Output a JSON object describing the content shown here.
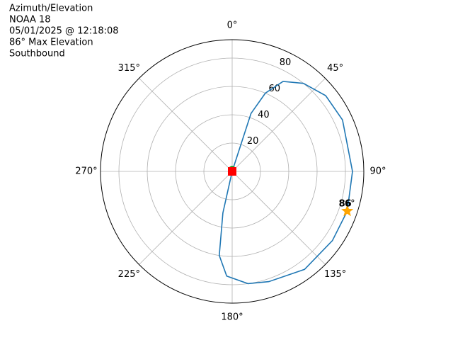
{
  "chart_data": {
    "type": "polar",
    "title_lines": [
      "Azimuth/Elevation",
      "NOAA 18",
      "05/01/2025 @ 12:18:08",
      "86° Max Elevation",
      "Southbound"
    ],
    "series": [
      {
        "color": "#1f77b4",
        "theta": [
          0,
          18,
          23,
          29.5,
          39,
          51,
          65,
          90,
          109,
          124.6,
          143.5,
          161.6,
          172,
          183,
          188.7,
          192.6,
          0
        ],
        "r": [
          0,
          43,
          60,
          73,
          80,
          85,
          86,
          85,
          86,
          86,
          86,
          82,
          80,
          74,
          60,
          30,
          0
        ]
      }
    ],
    "start": {
      "theta": 0,
      "r": 0,
      "color": "#2ca02c"
    },
    "end": {
      "theta": 0,
      "r": 0,
      "color": "#ff0000"
    },
    "max_point": {
      "theta": 109,
      "r": 86,
      "color": "#ffa500",
      "label": "86°",
      "label_bold": "86"
    },
    "rlim": [
      0,
      93
    ],
    "rticks": [
      20,
      40,
      60,
      80
    ],
    "thetaticks": [
      {
        "value": 0,
        "label": "0°"
      },
      {
        "value": 45,
        "label": "45°"
      },
      {
        "value": 90,
        "label": "90°"
      },
      {
        "value": 135,
        "label": "135°"
      },
      {
        "value": 180,
        "label": "180°"
      },
      {
        "value": 225,
        "label": "225°"
      },
      {
        "value": 270,
        "label": "270°"
      },
      {
        "value": 315,
        "label": "315°"
      }
    ],
    "grid": true
  }
}
